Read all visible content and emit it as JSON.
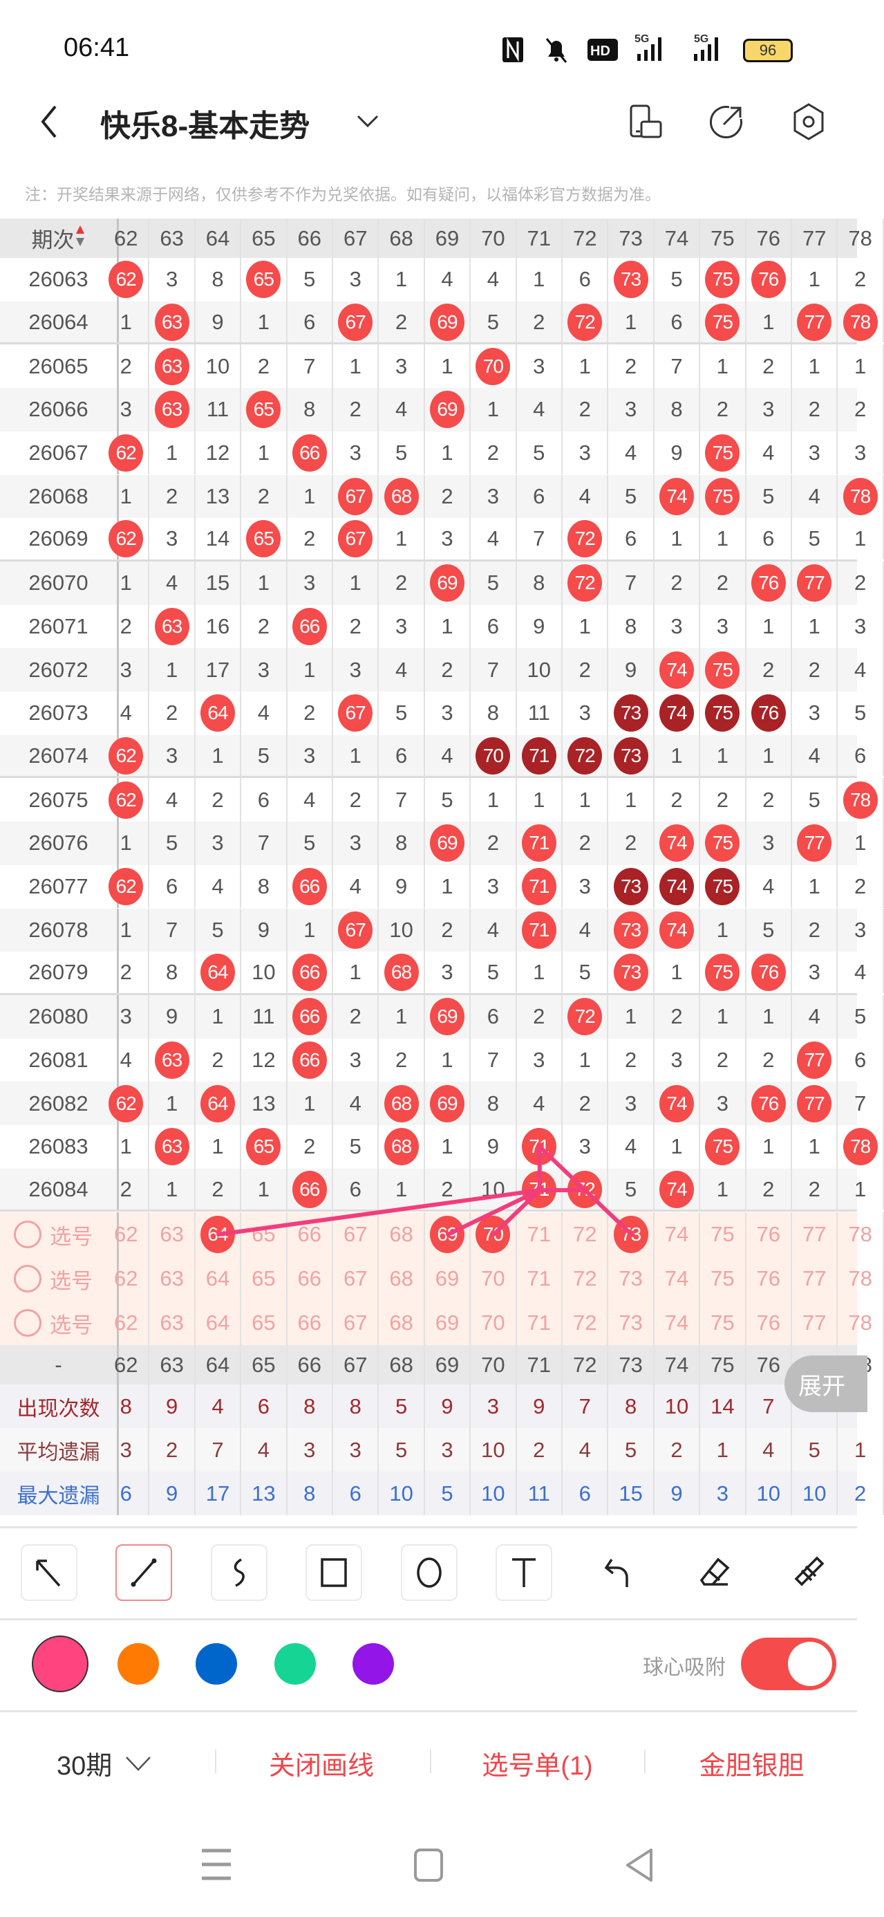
{
  "status_bar": {
    "time": "06:41",
    "battery": "96",
    "network": [
      "5G",
      "5G"
    ]
  },
  "header": {
    "title": "快乐8-基本走势"
  },
  "note": "注：开奖结果来源于网络，仅供参考不作为兑奖依据。如有疑问，以福体彩官方数据为准。",
  "table": {
    "issue_header": "期次",
    "columns": [
      "62",
      "63",
      "64",
      "65",
      "66",
      "67",
      "68",
      "69",
      "70",
      "71",
      "72",
      "73",
      "74",
      "75",
      "76",
      "77",
      "78"
    ],
    "colors": {
      "ball": "#f54b4b",
      "ball_consecutive": "#a92226",
      "line": "#f23d7c"
    },
    "rows": [
      {
        "issue": "26063",
        "cells": [
          {
            "ball": "62"
          },
          "3",
          "8",
          {
            "ball": "65"
          },
          "5",
          "3",
          "1",
          "4",
          "4",
          "1",
          "6",
          {
            "ball": "73"
          },
          "5",
          {
            "ball": "75"
          },
          {
            "ball": "76"
          },
          "1",
          "2"
        ]
      },
      {
        "issue": "26064",
        "cells": [
          "1",
          {
            "ball": "63"
          },
          "9",
          "1",
          "6",
          {
            "ball": "67"
          },
          "2",
          {
            "ball": "69"
          },
          "5",
          "2",
          {
            "ball": "72"
          },
          "1",
          "6",
          {
            "ball": "75"
          },
          "1",
          {
            "ball": "77"
          },
          {
            "ball": "78"
          }
        ]
      },
      {
        "issue": "26065",
        "cells": [
          "2",
          {
            "ball": "63"
          },
          "10",
          "2",
          "7",
          "1",
          "3",
          "1",
          {
            "ball": "70"
          },
          "3",
          "1",
          "2",
          "7",
          "1",
          "2",
          "1",
          "1"
        ]
      },
      {
        "issue": "26066",
        "cells": [
          "3",
          {
            "ball": "63"
          },
          "11",
          {
            "ball": "65"
          },
          "8",
          "2",
          "4",
          {
            "ball": "69"
          },
          "1",
          "4",
          "2",
          "3",
          "8",
          "2",
          "3",
          "2",
          "2"
        ]
      },
      {
        "issue": "26067",
        "cells": [
          {
            "ball": "62"
          },
          "1",
          "12",
          "1",
          {
            "ball": "66"
          },
          "3",
          "5",
          "1",
          "2",
          "5",
          "3",
          "4",
          "9",
          {
            "ball": "75"
          },
          "4",
          "3",
          "3"
        ]
      },
      {
        "issue": "26068",
        "cells": [
          "1",
          "2",
          "13",
          "2",
          "1",
          {
            "ball": "67"
          },
          {
            "ball": "68"
          },
          "2",
          "3",
          "6",
          "4",
          "5",
          {
            "ball": "74"
          },
          {
            "ball": "75"
          },
          "5",
          "4",
          {
            "ball": "78"
          }
        ]
      },
      {
        "issue": "26069",
        "cells": [
          {
            "ball": "62"
          },
          "3",
          "14",
          {
            "ball": "65"
          },
          "2",
          {
            "ball": "67"
          },
          "1",
          "3",
          "4",
          "7",
          {
            "ball": "72"
          },
          "6",
          "1",
          "1",
          "6",
          "5",
          "1"
        ]
      },
      {
        "issue": "26070",
        "cells": [
          "1",
          "4",
          "15",
          "1",
          "3",
          "1",
          "2",
          {
            "ball": "69"
          },
          "5",
          "8",
          {
            "ball": "72"
          },
          "7",
          "2",
          "2",
          {
            "ball": "76"
          },
          {
            "ball": "77"
          },
          "2"
        ]
      },
      {
        "issue": "26071",
        "cells": [
          "2",
          {
            "ball": "63"
          },
          "16",
          "2",
          {
            "ball": "66"
          },
          "2",
          "3",
          "1",
          "6",
          "9",
          "1",
          "8",
          "3",
          "3",
          "1",
          "1",
          "3"
        ]
      },
      {
        "issue": "26072",
        "cells": [
          "3",
          "1",
          "17",
          "3",
          "1",
          "3",
          "4",
          "2",
          "7",
          "10",
          "2",
          "9",
          {
            "ball": "74"
          },
          {
            "ball": "75"
          },
          "2",
          "2",
          "4"
        ]
      },
      {
        "issue": "26073",
        "cells": [
          "4",
          "2",
          {
            "ball": "64"
          },
          "4",
          "2",
          {
            "ball": "67"
          },
          "5",
          "3",
          "8",
          "11",
          "3",
          {
            "ball": "73",
            "dark": true
          },
          {
            "ball": "74",
            "dark": true
          },
          {
            "ball": "75",
            "dark": true
          },
          {
            "ball": "76",
            "dark": true
          },
          "3",
          "5"
        ]
      },
      {
        "issue": "26074",
        "cells": [
          {
            "ball": "62"
          },
          "3",
          "1",
          "5",
          "3",
          "1",
          "6",
          "4",
          {
            "ball": "70",
            "dark": true
          },
          {
            "ball": "71",
            "dark": true
          },
          {
            "ball": "72",
            "dark": true
          },
          {
            "ball": "73",
            "dark": true
          },
          "1",
          "1",
          "1",
          "4",
          "6"
        ]
      },
      {
        "issue": "26075",
        "cells": [
          {
            "ball": "62"
          },
          "4",
          "2",
          "6",
          "4",
          "2",
          "7",
          "5",
          "1",
          "1",
          "1",
          "1",
          "2",
          "2",
          "2",
          "5",
          {
            "ball": "78"
          }
        ]
      },
      {
        "issue": "26076",
        "cells": [
          "1",
          "5",
          "3",
          "7",
          "5",
          "3",
          "8",
          {
            "ball": "69"
          },
          "2",
          {
            "ball": "71"
          },
          "2",
          "2",
          {
            "ball": "74"
          },
          {
            "ball": "75"
          },
          "3",
          {
            "ball": "77"
          },
          "1"
        ]
      },
      {
        "issue": "26077",
        "cells": [
          {
            "ball": "62"
          },
          "6",
          "4",
          "8",
          {
            "ball": "66"
          },
          "4",
          "9",
          "1",
          "3",
          {
            "ball": "71"
          },
          "3",
          {
            "ball": "73",
            "dark": true
          },
          {
            "ball": "74",
            "dark": true
          },
          {
            "ball": "75",
            "dark": true
          },
          "4",
          "1",
          "2"
        ]
      },
      {
        "issue": "26078",
        "cells": [
          "1",
          "7",
          "5",
          "9",
          "1",
          {
            "ball": "67"
          },
          "10",
          "2",
          "4",
          {
            "ball": "71"
          },
          "4",
          {
            "ball": "73"
          },
          {
            "ball": "74"
          },
          "1",
          "5",
          "2",
          "3"
        ]
      },
      {
        "issue": "26079",
        "cells": [
          "2",
          "8",
          {
            "ball": "64"
          },
          "10",
          {
            "ball": "66"
          },
          "1",
          {
            "ball": "68"
          },
          "3",
          "5",
          "1",
          "5",
          {
            "ball": "73"
          },
          "1",
          {
            "ball": "75"
          },
          {
            "ball": "76"
          },
          "3",
          "4"
        ]
      },
      {
        "issue": "26080",
        "cells": [
          "3",
          "9",
          "1",
          "11",
          {
            "ball": "66"
          },
          "2",
          "1",
          {
            "ball": "69"
          },
          "6",
          "2",
          {
            "ball": "72"
          },
          "1",
          "2",
          "1",
          "1",
          "4",
          "5"
        ]
      },
      {
        "issue": "26081",
        "cells": [
          "4",
          {
            "ball": "63"
          },
          "2",
          "12",
          {
            "ball": "66"
          },
          "3",
          "2",
          "1",
          "7",
          "3",
          "1",
          "2",
          "3",
          "2",
          "2",
          {
            "ball": "77"
          },
          "6"
        ]
      },
      {
        "issue": "26082",
        "cells": [
          {
            "ball": "62"
          },
          "1",
          {
            "ball": "64"
          },
          "13",
          "1",
          "4",
          {
            "ball": "68"
          },
          {
            "ball": "69"
          },
          "8",
          "4",
          "2",
          "3",
          {
            "ball": "74"
          },
          "3",
          {
            "ball": "76"
          },
          {
            "ball": "77"
          },
          "7"
        ]
      },
      {
        "issue": "26083",
        "cells": [
          "1",
          {
            "ball": "63"
          },
          "1",
          {
            "ball": "65"
          },
          "2",
          "5",
          {
            "ball": "68"
          },
          "1",
          "9",
          {
            "ball": "71"
          },
          "3",
          "4",
          "1",
          {
            "ball": "75"
          },
          "1",
          "1",
          {
            "ball": "78"
          }
        ]
      },
      {
        "issue": "26084",
        "cells": [
          "2",
          "1",
          "2",
          "1",
          {
            "ball": "66"
          },
          "6",
          "1",
          "2",
          "10",
          {
            "ball": "71"
          },
          {
            "ball": "72"
          },
          "5",
          {
            "ball": "74"
          },
          "1",
          "2",
          "2",
          "1"
        ]
      }
    ],
    "pick_rows": [
      {
        "label": "选号",
        "selected": [
          "64",
          "69",
          "70",
          "73"
        ]
      },
      {
        "label": "选号",
        "selected": []
      },
      {
        "label": "选号",
        "selected": []
      }
    ],
    "footer_header_label": "-",
    "stats": [
      {
        "label": "出现次数",
        "color": "#a3282c",
        "values": [
          "8",
          "9",
          "4",
          "6",
          "8",
          "8",
          "5",
          "9",
          "3",
          "9",
          "7",
          "8",
          "10",
          "14",
          "7",
          "",
          ""
        ]
      },
      {
        "label": "平均遗漏",
        "color": "#8c3b3b",
        "values": [
          "3",
          "2",
          "7",
          "4",
          "3",
          "3",
          "5",
          "3",
          "10",
          "2",
          "4",
          "5",
          "2",
          "1",
          "4",
          "5",
          "1"
        ]
      },
      {
        "label": "最大遗漏",
        "color": "#3b6fd1",
        "values": [
          "6",
          "9",
          "17",
          "13",
          "8",
          "6",
          "10",
          "5",
          "10",
          "11",
          "6",
          "15",
          "9",
          "3",
          "10",
          "10",
          "2"
        ]
      }
    ],
    "expand_label": "展开"
  },
  "drawing_toolbar": {
    "tools": [
      "arrow-icon",
      "line-icon",
      "freehand-icon",
      "rectangle-icon",
      "circle-icon",
      "text-icon",
      "undo-icon",
      "eraser-icon",
      "clear-icon"
    ],
    "active_tool": "line-icon",
    "colors": [
      "#ff4480",
      "#ff7a00",
      "#0066cc",
      "#16d494",
      "#9315e8"
    ],
    "selected_color": "#ff4480",
    "snap_label": "球心吸附",
    "snap_on": true
  },
  "bottom_bar": {
    "period": "30期",
    "close_drawing": "关闭画线",
    "pick_list": "选号单(1)",
    "gold_silver": "金胆银胆"
  }
}
